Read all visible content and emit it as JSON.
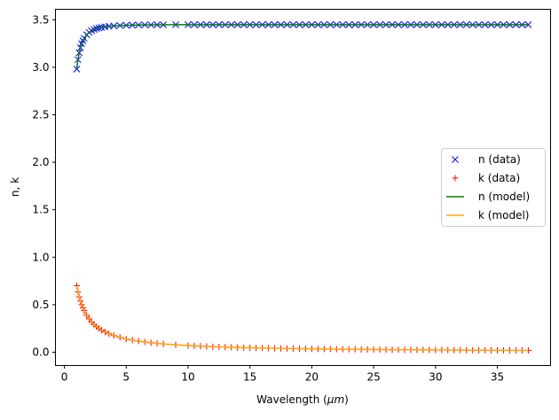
{
  "chart_data": {
    "type": "scatter",
    "xlabel": "Wavelength (",
    "xlabel_unit": "μm",
    "xlabel_close": ")",
    "ylabel": "n, k",
    "xlim": [
      -0.72,
      39.3
    ],
    "ylim": [
      -0.14,
      3.61
    ],
    "xticks": [
      0,
      5,
      10,
      15,
      20,
      25,
      30,
      35
    ],
    "xtick_labels": [
      "0",
      "5",
      "10",
      "15",
      "20",
      "25",
      "30",
      "35"
    ],
    "yticks": [
      0,
      0.5,
      1,
      1.5,
      2,
      2.5,
      3,
      3.5
    ],
    "ytick_labels": [
      "0.0",
      "0.5",
      "1.0",
      "1.5",
      "2.0",
      "2.5",
      "3.0",
      "3.5"
    ],
    "grid": false,
    "legend_position": "center-right",
    "x": [
      1.0,
      1.1,
      1.2,
      1.3,
      1.4,
      1.5,
      1.6,
      1.8,
      2.0,
      2.2,
      2.4,
      2.6,
      2.8,
      3.0,
      3.3,
      3.6,
      4.0,
      4.5,
      5,
      5.5,
      6,
      6.5,
      7,
      7.5,
      8,
      9,
      10,
      10.5,
      11,
      11.5,
      12,
      12.5,
      13,
      13.5,
      14,
      14.5,
      15,
      15.5,
      16,
      16.5,
      17,
      17.5,
      18,
      18.5,
      19,
      19.5,
      20,
      20.5,
      21,
      21.5,
      22,
      22.5,
      23,
      23.5,
      24,
      24.5,
      25,
      25.5,
      26,
      26.5,
      27,
      27.5,
      28,
      28.5,
      29,
      29.5,
      30,
      30.5,
      31,
      31.5,
      32,
      32.5,
      33,
      33.5,
      34,
      34.5,
      35,
      35.5,
      36,
      36.5,
      37,
      37.5
    ],
    "series": [
      {
        "name": "n (data)",
        "style": "marker-x",
        "color": "#0000ff",
        "values": [
          2.98,
          3.08,
          3.152,
          3.206,
          3.247,
          3.279,
          3.305,
          3.342,
          3.367,
          3.385,
          3.397,
          3.407,
          3.414,
          3.42,
          3.426,
          3.431,
          3.435,
          3.439,
          3.442,
          3.443,
          3.445,
          3.446,
          3.446,
          3.447,
          3.447,
          3.448,
          3.448,
          3.448,
          3.448,
          3.448,
          3.448,
          3.448,
          3.448,
          3.448,
          3.448,
          3.448,
          3.448,
          3.448,
          3.448,
          3.448,
          3.448,
          3.448,
          3.448,
          3.448,
          3.448,
          3.448,
          3.448,
          3.448,
          3.448,
          3.448,
          3.448,
          3.448,
          3.448,
          3.448,
          3.448,
          3.448,
          3.448,
          3.448,
          3.448,
          3.448,
          3.448,
          3.448,
          3.448,
          3.448,
          3.448,
          3.448,
          3.448,
          3.448,
          3.448,
          3.448,
          3.448,
          3.448,
          3.448,
          3.448,
          3.448,
          3.448,
          3.448,
          3.448,
          3.448,
          3.448,
          3.448,
          3.448
        ]
      },
      {
        "name": "k (data)",
        "style": "marker-plus",
        "color": "#ff0000",
        "values": [
          0.7,
          0.636,
          0.583,
          0.538,
          0.5,
          0.467,
          0.438,
          0.389,
          0.35,
          0.318,
          0.292,
          0.269,
          0.25,
          0.233,
          0.212,
          0.194,
          0.175,
          0.156,
          0.14,
          0.127,
          0.117,
          0.108,
          0.1,
          0.093,
          0.0875,
          0.078,
          0.07,
          0.067,
          0.064,
          0.061,
          0.058,
          0.056,
          0.054,
          0.052,
          0.05,
          0.048,
          0.047,
          0.045,
          0.044,
          0.042,
          0.041,
          0.04,
          0.039,
          0.038,
          0.037,
          0.036,
          0.035,
          0.034,
          0.033,
          0.033,
          0.032,
          0.031,
          0.03,
          0.03,
          0.029,
          0.029,
          0.028,
          0.027,
          0.027,
          0.026,
          0.026,
          0.025,
          0.025,
          0.025,
          0.024,
          0.024,
          0.023,
          0.023,
          0.023,
          0.022,
          0.022,
          0.022,
          0.021,
          0.021,
          0.021,
          0.02,
          0.02,
          0.02,
          0.019,
          0.019,
          0.019,
          0.019
        ]
      },
      {
        "name": "n (model)",
        "style": "line",
        "color": "#008000",
        "values": [
          2.98,
          3.08,
          3.152,
          3.206,
          3.247,
          3.279,
          3.305,
          3.342,
          3.367,
          3.385,
          3.397,
          3.407,
          3.414,
          3.42,
          3.426,
          3.431,
          3.435,
          3.439,
          3.442,
          3.443,
          3.445,
          3.446,
          3.446,
          3.447,
          3.447,
          3.448,
          3.448,
          3.448,
          3.448,
          3.448,
          3.448,
          3.448,
          3.448,
          3.448,
          3.448,
          3.448,
          3.448,
          3.448,
          3.448,
          3.448,
          3.448,
          3.448,
          3.448,
          3.448,
          3.448,
          3.448,
          3.448,
          3.448,
          3.448,
          3.448,
          3.448,
          3.448,
          3.448,
          3.448,
          3.448,
          3.448,
          3.448,
          3.448,
          3.448,
          3.448,
          3.448,
          3.448,
          3.448,
          3.448,
          3.448,
          3.448,
          3.448,
          3.448,
          3.448,
          3.448,
          3.448,
          3.448,
          3.448,
          3.448,
          3.448,
          3.448,
          3.448,
          3.448,
          3.448,
          3.448,
          3.448,
          3.448
        ]
      },
      {
        "name": "k (model)",
        "style": "line",
        "color": "#ffa500",
        "values": [
          0.7,
          0.636,
          0.583,
          0.538,
          0.5,
          0.467,
          0.438,
          0.389,
          0.35,
          0.318,
          0.292,
          0.269,
          0.25,
          0.233,
          0.212,
          0.194,
          0.175,
          0.156,
          0.14,
          0.127,
          0.117,
          0.108,
          0.1,
          0.093,
          0.0875,
          0.078,
          0.07,
          0.067,
          0.064,
          0.061,
          0.058,
          0.056,
          0.054,
          0.052,
          0.05,
          0.048,
          0.047,
          0.045,
          0.044,
          0.042,
          0.041,
          0.04,
          0.039,
          0.038,
          0.037,
          0.036,
          0.035,
          0.034,
          0.033,
          0.033,
          0.032,
          0.031,
          0.03,
          0.03,
          0.029,
          0.029,
          0.028,
          0.027,
          0.027,
          0.026,
          0.026,
          0.025,
          0.025,
          0.025,
          0.024,
          0.024,
          0.023,
          0.023,
          0.023,
          0.022,
          0.022,
          0.022,
          0.021,
          0.021,
          0.021,
          0.02,
          0.02,
          0.02,
          0.019,
          0.019,
          0.019,
          0.019
        ]
      }
    ]
  }
}
